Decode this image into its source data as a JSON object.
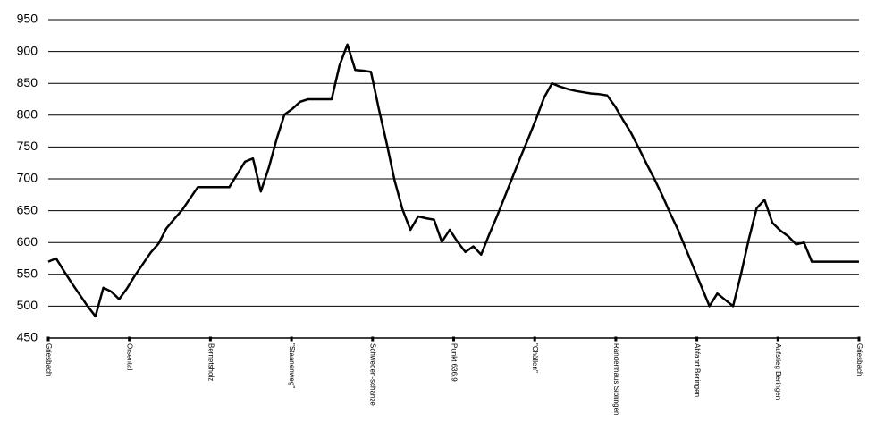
{
  "chart_data": {
    "type": "line",
    "title": "",
    "xlabel": "",
    "ylabel": "",
    "ylim": [
      450,
      950
    ],
    "yticks": [
      450,
      500,
      550,
      600,
      650,
      700,
      750,
      800,
      850,
      900,
      950
    ],
    "grid": "horizontal",
    "legend": "none",
    "line_color": "#000000",
    "categories": [
      "Griesbach",
      "Orsental",
      "Bernetsholz",
      "\"Staanenweg\"",
      "Schweden-schanze",
      "Punkt 636.9",
      "\"Chällen\"",
      "Randenhaus Siblingen",
      "Abfahrt Beringen",
      "Aufstieg Beringen",
      "Griesbach"
    ],
    "x": [
      0,
      1,
      2,
      3,
      4,
      5,
      6,
      7,
      8,
      9,
      10,
      11,
      12,
      13,
      14,
      15,
      16,
      17,
      18,
      19,
      20,
      21,
      22,
      23,
      24,
      25,
      26,
      27,
      28,
      29,
      30,
      31,
      32,
      33,
      34,
      35,
      36,
      37,
      38,
      39,
      40,
      41,
      42,
      43,
      44,
      45,
      46,
      47,
      48,
      49,
      50,
      51,
      52,
      53,
      54,
      55,
      56,
      57,
      58,
      59,
      60,
      61,
      62,
      63,
      64,
      65,
      66,
      67,
      68,
      69,
      70,
      71,
      72,
      73,
      74,
      75,
      76,
      77,
      78,
      79,
      80,
      81,
      82,
      83,
      84,
      85,
      86,
      87,
      88,
      89,
      90,
      91,
      92,
      93,
      94,
      95,
      96,
      97,
      98,
      99,
      100,
      101,
      102,
      103
    ],
    "values": [
      570,
      575,
      555,
      536,
      518,
      500,
      484,
      529,
      523,
      511,
      528,
      548,
      566,
      584,
      598,
      622,
      637,
      651,
      669,
      687,
      687,
      687,
      687,
      687,
      707,
      727,
      732,
      680,
      717,
      762,
      801,
      810,
      821,
      825,
      825,
      825,
      825,
      878,
      911,
      871,
      870,
      868,
      810,
      755,
      697,
      652,
      620,
      641,
      638,
      636,
      601,
      620,
      601,
      585,
      594,
      581,
      612,
      641,
      672,
      703,
      734,
      764,
      795,
      828,
      850,
      845,
      841,
      838,
      836,
      834,
      833,
      831,
      814,
      793,
      773,
      749,
      724,
      700,
      674,
      646,
      620,
      590,
      560,
      530,
      500,
      520,
      510,
      500,
      550,
      605,
      654,
      667,
      631,
      619,
      610,
      597,
      600,
      570,
      570,
      570,
      570,
      570,
      570,
      570
    ]
  }
}
